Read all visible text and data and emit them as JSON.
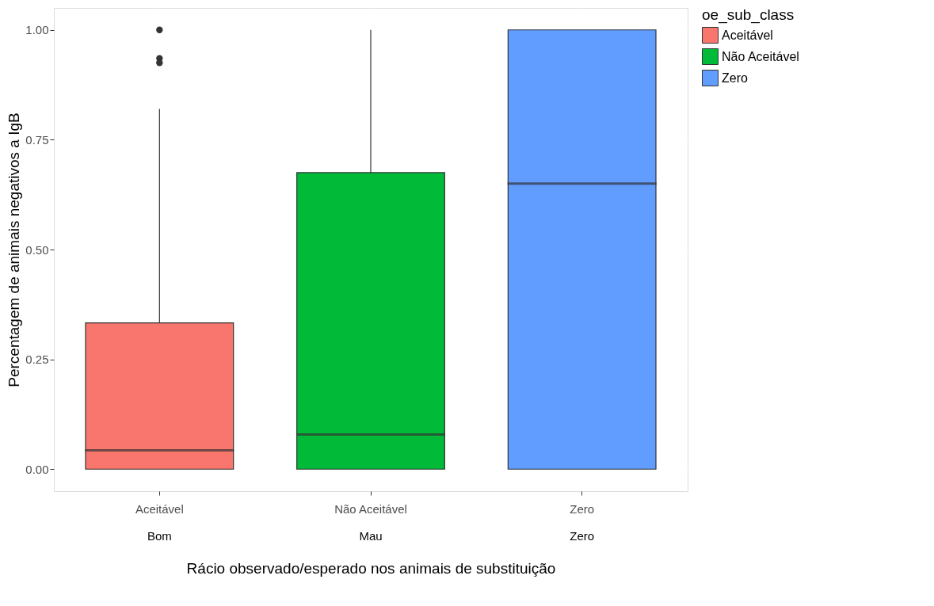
{
  "chart_data": {
    "type": "box",
    "xlabel": "Rácio observado/esperado nos animais de substituição",
    "ylabel": "Percentagem de animais negativos a IgB",
    "legend_title": "oe_sub_class",
    "categories": [
      "Aceitável",
      "Não Aceitável",
      "Zero"
    ],
    "series": [
      {
        "name": "Aceitável",
        "color": "#f8766d",
        "boxes": [
          {
            "low": 0,
            "q1": 0,
            "median": 0.043,
            "q3": 0.333,
            "high": 0.82,
            "outliers": [
              1.0,
              0.935,
              0.925
            ]
          },
          null,
          null
        ]
      },
      {
        "name": "Não Aceitável",
        "color": "#00ba38",
        "boxes": [
          null,
          {
            "low": 0,
            "q1": 0,
            "median": 0.079,
            "q3": 0.675,
            "high": 1.0
          },
          null
        ]
      },
      {
        "name": "Zero",
        "color": "#619cff",
        "boxes": [
          null,
          null,
          {
            "low": 0,
            "q1": 0,
            "median": 0.65,
            "q3": 1.0,
            "high": 1.0
          }
        ]
      }
    ],
    "ylim": [
      -0.05,
      1.05
    ],
    "yticks": [
      {
        "value": 0,
        "label": "0.00"
      },
      {
        "value": 0.25,
        "label": "0.25"
      },
      {
        "value": 0.5,
        "label": "0.50"
      },
      {
        "value": 0.75,
        "label": "0.75"
      },
      {
        "value": 1.0,
        "label": "1.00"
      }
    ],
    "grid": true,
    "legend": "right",
    "annotations": [
      "Bom",
      "Mau",
      "Zero"
    ]
  }
}
